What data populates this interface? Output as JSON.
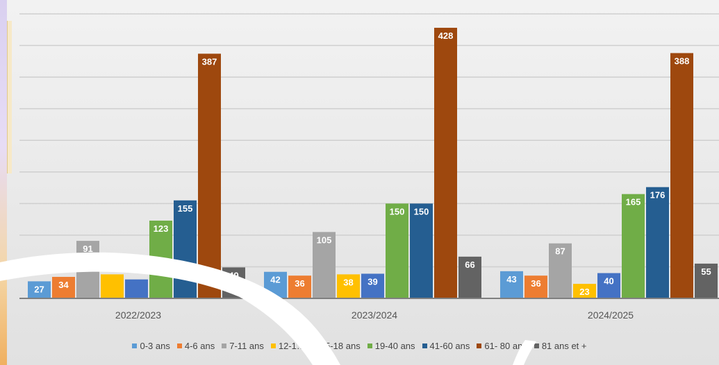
{
  "chart_data": {
    "type": "bar",
    "categories": [
      "2022/2023",
      "2023/2024",
      "2024/2025"
    ],
    "ylim": [
      0,
      450
    ],
    "grid": true,
    "legend_position": "bottom",
    "series": [
      {
        "name": "0-3 ans",
        "color": "#5b9bd5",
        "values": [
          27,
          42,
          43
        ],
        "labels": [
          "27",
          "42",
          "43"
        ]
      },
      {
        "name": "4-6 ans",
        "color": "#ed7d31",
        "values": [
          34,
          36,
          36
        ],
        "labels": [
          "34",
          "36",
          "36"
        ]
      },
      {
        "name": "7-11 ans",
        "color": "#a5a5a5",
        "values": [
          91,
          105,
          87
        ],
        "labels": [
          "91",
          "105",
          "87"
        ]
      },
      {
        "name": "12-14 ans",
        "color": "#ffc000",
        "values": [
          38,
          38,
          23
        ],
        "labels": [
          "",
          "38",
          "23"
        ]
      },
      {
        "name": "15-18 ans",
        "color": "#4472c4",
        "values": [
          30,
          39,
          40
        ],
        "labels": [
          "",
          "39",
          "40"
        ]
      },
      {
        "name": "19-40 ans",
        "color": "#70ad47",
        "values": [
          123,
          150,
          165
        ],
        "labels": [
          "123",
          "150",
          "165"
        ]
      },
      {
        "name": "41-60 ans",
        "color": "#255e91",
        "values": [
          155,
          150,
          176
        ],
        "labels": [
          "155",
          "150",
          "176"
        ]
      },
      {
        "name": "61- 80 ans",
        "color": "#9e480e",
        "values": [
          387,
          428,
          388
        ],
        "labels": [
          "387",
          "428",
          "388"
        ]
      },
      {
        "name": "81 ans et +",
        "color": "#636363",
        "values": [
          49,
          66,
          55
        ],
        "labels": [
          "49",
          "66",
          "55"
        ]
      }
    ]
  },
  "legend": {
    "items": [
      "0-3 ans",
      "4-6 ans",
      "7-11 ans",
      "12-1…",
      "15-18 ans",
      "19-40 ans",
      "41-60 ans",
      "61- 80 ans",
      "81 ans et +"
    ]
  }
}
